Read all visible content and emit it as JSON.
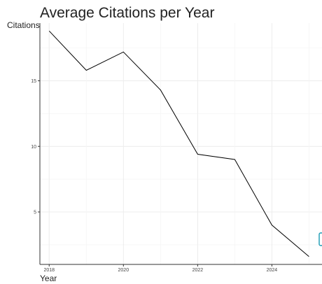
{
  "chart_data": {
    "type": "line",
    "title": "Average Citations per Year",
    "xlabel": "Year",
    "ylabel": "Citations",
    "x": [
      2018,
      2019,
      2020,
      2021,
      2022,
      2023,
      2024,
      2025
    ],
    "series": [
      {
        "values": [
          18.8,
          15.8,
          17.2,
          14.3,
          9.4,
          9.0,
          4.0,
          1.6
        ]
      }
    ],
    "xlim": [
      2017.75,
      2025.35
    ],
    "ylim": [
      1.0,
      19.4
    ],
    "xticks": [
      2018,
      2020,
      2022,
      2024
    ],
    "yticks": [
      5,
      10,
      15
    ],
    "grid": true,
    "line_color": "#000000",
    "widget_color": "#1a9bb3"
  }
}
